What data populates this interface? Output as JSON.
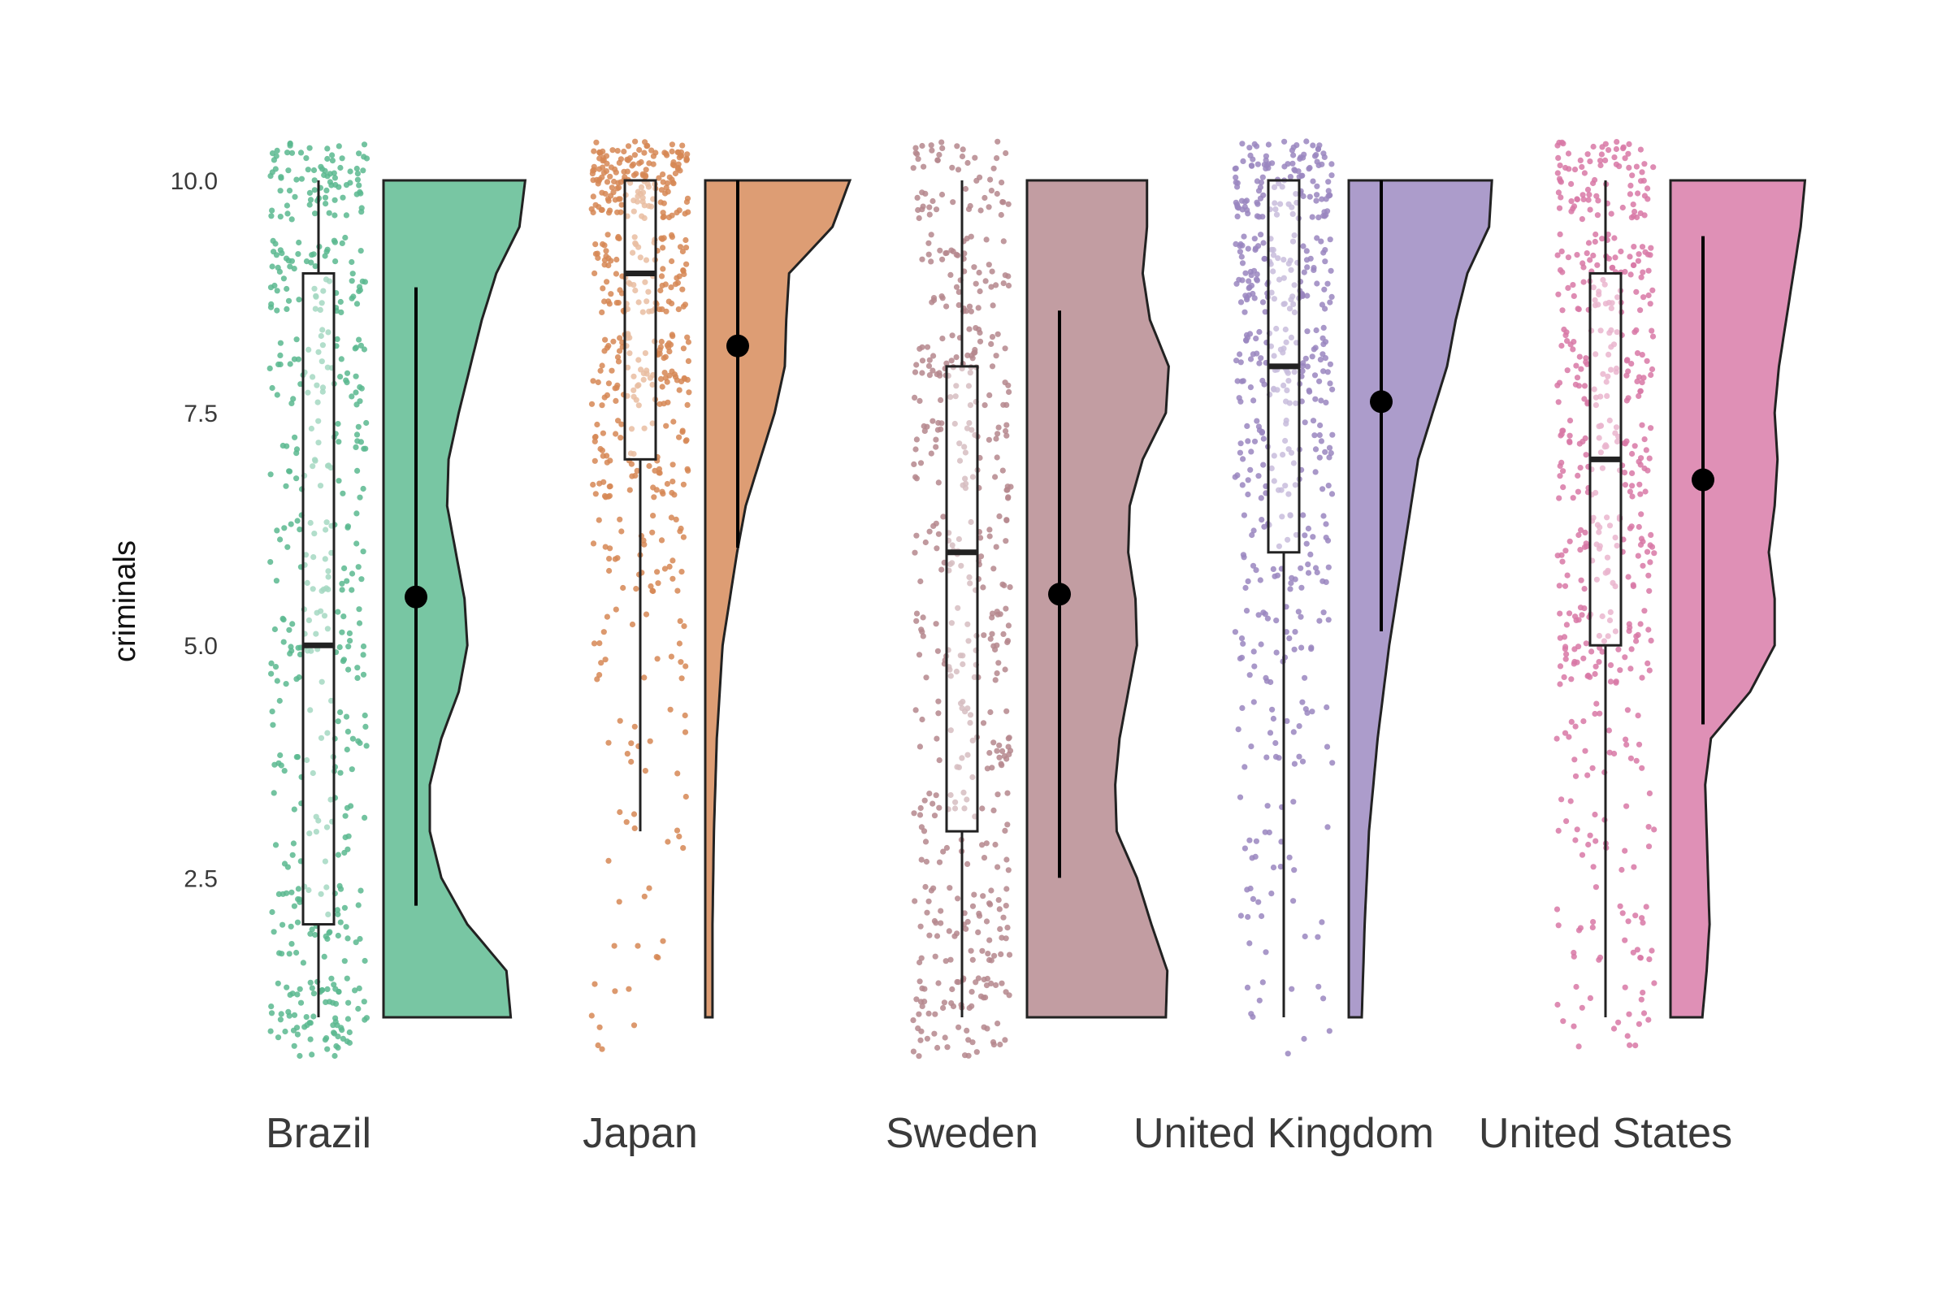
{
  "chart_data": {
    "type": "raincloud",
    "ylabel": "criminals",
    "xlabel": "",
    "ylim": [
      0.5,
      10.5
    ],
    "yticks": [
      2.5,
      5.0,
      7.5,
      10.0
    ],
    "ytick_labels": [
      "2.5",
      "5.0",
      "7.5",
      "10.0"
    ],
    "grid": false,
    "legend": "none",
    "groups": [
      {
        "category": "Brazil",
        "color": "#5ab98f",
        "box": {
          "min": 1,
          "q1": 2,
          "median": 5,
          "q3": 9,
          "max": 10
        },
        "mean": 5.52,
        "ci": [
          2.2,
          8.85
        ],
        "density": [
          [
            1.0,
            0.88
          ],
          [
            1.5,
            0.85
          ],
          [
            2.0,
            0.58
          ],
          [
            2.5,
            0.4
          ],
          [
            3.0,
            0.32
          ],
          [
            3.5,
            0.32
          ],
          [
            4.0,
            0.4
          ],
          [
            4.5,
            0.52
          ],
          [
            5.0,
            0.58
          ],
          [
            5.5,
            0.56
          ],
          [
            6.0,
            0.5
          ],
          [
            6.5,
            0.44
          ],
          [
            7.0,
            0.45
          ],
          [
            7.5,
            0.52
          ],
          [
            8.0,
            0.6
          ],
          [
            8.5,
            0.68
          ],
          [
            9.0,
            0.78
          ],
          [
            9.5,
            0.94
          ],
          [
            10.0,
            0.98
          ]
        ]
      },
      {
        "category": "Japan",
        "color": "#d68755",
        "box": {
          "min": 3,
          "q1": 7,
          "median": 9,
          "q3": 10,
          "max": 10
        },
        "mean": 8.22,
        "ci": [
          6.05,
          10.0
        ],
        "density": [
          [
            1.0,
            0.05
          ],
          [
            2.0,
            0.05
          ],
          [
            3.0,
            0.06
          ],
          [
            4.0,
            0.08
          ],
          [
            5.0,
            0.12
          ],
          [
            6.0,
            0.22
          ],
          [
            6.5,
            0.28
          ],
          [
            7.0,
            0.38
          ],
          [
            7.5,
            0.48
          ],
          [
            8.0,
            0.55
          ],
          [
            8.5,
            0.56
          ],
          [
            9.0,
            0.58
          ],
          [
            9.5,
            0.88
          ],
          [
            10.0,
            1.0
          ]
        ]
      },
      {
        "category": "Sweden",
        "color": "#b5878d",
        "box": {
          "min": 1,
          "q1": 3,
          "median": 6,
          "q3": 8,
          "max": 10
        },
        "mean": 5.55,
        "ci": [
          2.5,
          8.6
        ],
        "density": [
          [
            1.0,
            0.96
          ],
          [
            1.5,
            0.97
          ],
          [
            2.0,
            0.86
          ],
          [
            2.5,
            0.76
          ],
          [
            3.0,
            0.62
          ],
          [
            3.5,
            0.61
          ],
          [
            4.0,
            0.64
          ],
          [
            4.5,
            0.7
          ],
          [
            5.0,
            0.76
          ],
          [
            5.5,
            0.75
          ],
          [
            6.0,
            0.7
          ],
          [
            6.5,
            0.71
          ],
          [
            7.0,
            0.8
          ],
          [
            7.5,
            0.96
          ],
          [
            8.0,
            0.98
          ],
          [
            8.5,
            0.85
          ],
          [
            9.0,
            0.8
          ],
          [
            9.5,
            0.83
          ],
          [
            10.0,
            0.83
          ]
        ]
      },
      {
        "category": "United Kingdom",
        "color": "#9a86c0",
        "box": {
          "min": 1,
          "q1": 6,
          "median": 8,
          "q3": 10,
          "max": 10
        },
        "mean": 7.62,
        "ci": [
          5.15,
          10.0
        ],
        "density": [
          [
            1.0,
            0.09
          ],
          [
            2.0,
            0.11
          ],
          [
            3.0,
            0.14
          ],
          [
            4.0,
            0.2
          ],
          [
            5.0,
            0.28
          ],
          [
            6.0,
            0.38
          ],
          [
            7.0,
            0.48
          ],
          [
            7.5,
            0.58
          ],
          [
            8.0,
            0.68
          ],
          [
            8.5,
            0.74
          ],
          [
            9.0,
            0.82
          ],
          [
            9.5,
            0.97
          ],
          [
            10.0,
            0.99
          ]
        ]
      },
      {
        "category": "United States",
        "color": "#d878a6",
        "box": {
          "min": 1,
          "q1": 5,
          "median": 7,
          "q3": 9,
          "max": 10
        },
        "mean": 6.78,
        "ci": [
          4.15,
          9.4
        ],
        "density": [
          [
            1.0,
            0.22
          ],
          [
            1.5,
            0.25
          ],
          [
            2.0,
            0.27
          ],
          [
            2.5,
            0.26
          ],
          [
            3.0,
            0.25
          ],
          [
            3.5,
            0.24
          ],
          [
            4.0,
            0.28
          ],
          [
            4.5,
            0.55
          ],
          [
            5.0,
            0.72
          ],
          [
            5.5,
            0.72
          ],
          [
            6.0,
            0.68
          ],
          [
            6.5,
            0.72
          ],
          [
            7.0,
            0.74
          ],
          [
            7.5,
            0.72
          ],
          [
            8.0,
            0.75
          ],
          [
            8.5,
            0.8
          ],
          [
            9.0,
            0.85
          ],
          [
            9.5,
            0.9
          ],
          [
            10.0,
            0.93
          ]
        ]
      }
    ]
  }
}
